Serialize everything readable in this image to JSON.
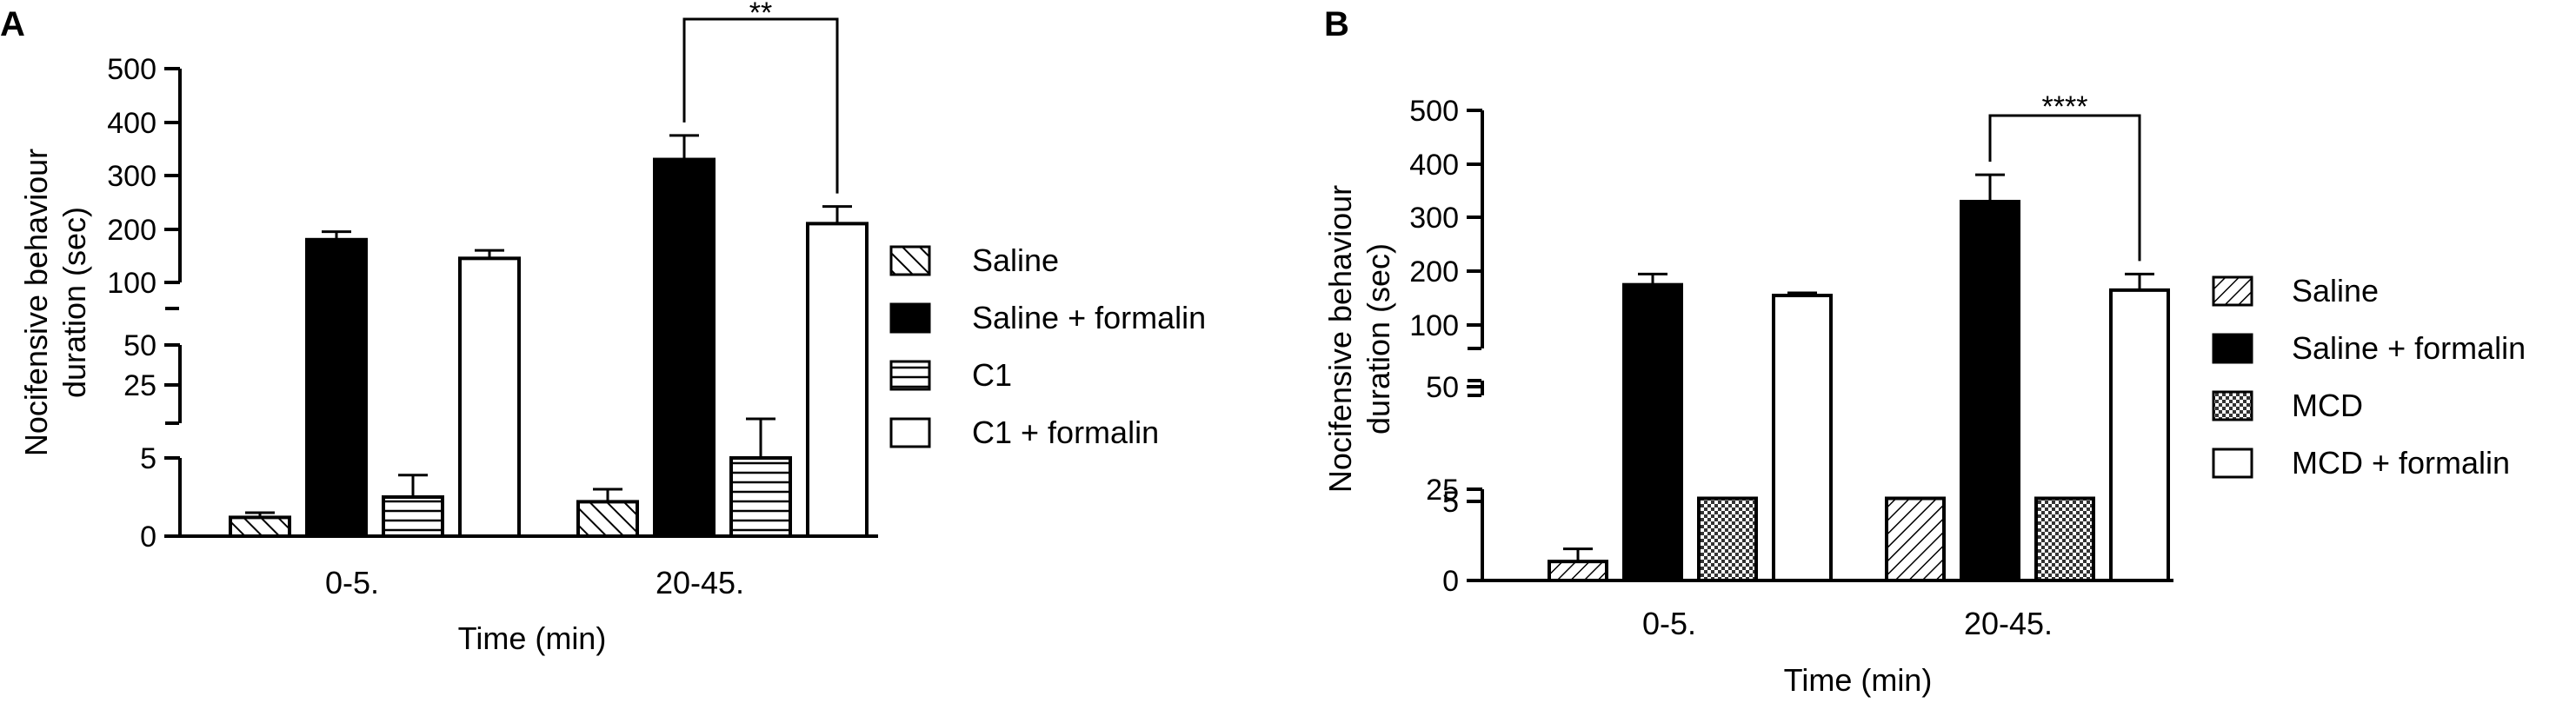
{
  "chart_data": [
    {
      "panel_label": "A",
      "type": "bar",
      "categories": [
        "0-5.",
        "20-45."
      ],
      "xlabel": "Time (min)",
      "ylabel_lines": [
        "Nocifensive behaviour",
        "duration (sec)"
      ],
      "y_ticks": [
        "0",
        "5",
        "25",
        "50",
        "100",
        "200",
        "300",
        "400",
        "500"
      ],
      "series": [
        {
          "name": "Saline",
          "fill": "hatch-diag-left",
          "values": [
            1.2,
            2.2
          ],
          "errors": [
            0.3,
            0.8
          ]
        },
        {
          "name": "Saline + formalin",
          "fill": "solid-black",
          "values": [
            180,
            330
          ],
          "errors": [
            15,
            45
          ]
        },
        {
          "name": "C1",
          "fill": "hatch-horizontal",
          "values": [
            2.5,
            5
          ],
          "errors": [
            1.4,
            2.5
          ]
        },
        {
          "name": "C1 + formalin",
          "fill": "white",
          "values": [
            145,
            210
          ],
          "errors": [
            15,
            32
          ]
        }
      ],
      "significance": [
        {
          "label": "**",
          "category": "20-45.",
          "between": [
            "Saline + formalin",
            "C1 + formalin"
          ]
        }
      ]
    },
    {
      "panel_label": "B",
      "type": "bar",
      "categories": [
        "0-5.",
        "20-45."
      ],
      "xlabel": "Time (min)",
      "ylabel_lines": [
        "Nocifensive behaviour",
        "duration (sec)"
      ],
      "y_ticks": [
        "0",
        "5",
        "25",
        "50",
        "100",
        "200",
        "300",
        "400",
        "500"
      ],
      "series": [
        {
          "name": "Saline",
          "fill": "hatch-diag-right",
          "values": [
            1.2,
            10
          ],
          "errors": [
            0.8,
            0.2
          ]
        },
        {
          "name": "Saline + formalin",
          "fill": "solid-black",
          "values": [
            175,
            330
          ],
          "errors": [
            20,
            50
          ]
        },
        {
          "name": "MCD",
          "fill": "checker",
          "values": [
            10,
            10
          ],
          "errors": [
            0.2,
            0.2
          ]
        },
        {
          "name": "MCD + formalin",
          "fill": "white",
          "values": [
            155,
            165
          ],
          "errors": [
            5,
            30
          ]
        }
      ],
      "significance": [
        {
          "label": "****",
          "category": "20-45.",
          "between": [
            "Saline + formalin",
            "MCD + formalin"
          ]
        }
      ]
    }
  ]
}
